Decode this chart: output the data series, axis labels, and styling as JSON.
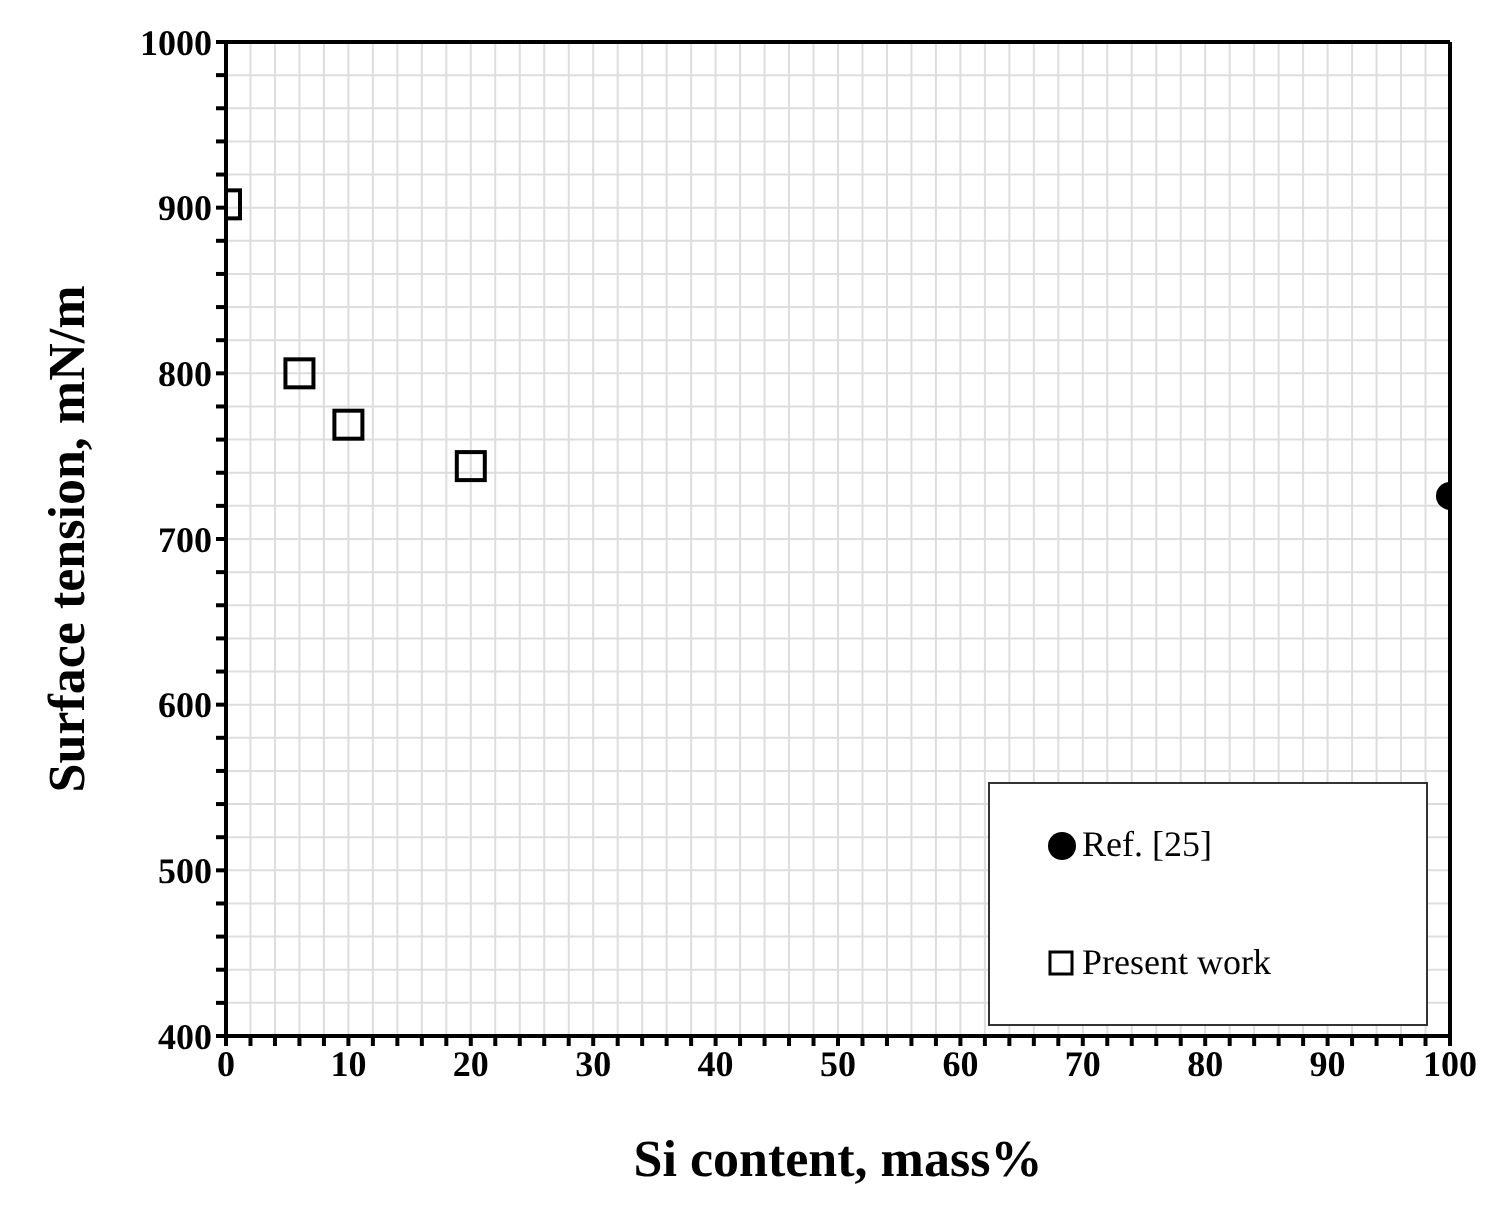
{
  "chart_data": {
    "type": "scatter",
    "xlabel": "Si content, mass%",
    "ylabel": "Surface tension, mN/m",
    "series": [
      {
        "name": "Ref. [25]",
        "color": "#000000",
        "marker": "circle",
        "x": [
          100
        ],
        "values": [
          726
        ]
      },
      {
        "name": "Present work",
        "color": "#000000",
        "marker": "square",
        "x": [
          0,
          6,
          10,
          20
        ],
        "values": [
          902,
          800,
          769,
          744
        ]
      }
    ],
    "xlim": [
      0,
      100
    ],
    "xticks": [
      0,
      {
        "value": 2,
        "label": null
      },
      {
        "value": 4,
        "label": null
      },
      {
        "value": 6,
        "label": null
      },
      {
        "value": 8,
        "label": null
      },
      10,
      {
        "value": 12,
        "label": null
      },
      {
        "value": 14,
        "label": null
      },
      {
        "value": 16,
        "label": null
      },
      {
        "value": 18,
        "label": null
      },
      20,
      {
        "value": 22,
        "label": null
      },
      {
        "value": 24,
        "label": null
      },
      {
        "value": 26,
        "label": null
      },
      {
        "value": 28,
        "label": null
      },
      30,
      {
        "value": 32,
        "label": null
      },
      {
        "value": 34,
        "label": null
      },
      {
        "value": 36,
        "label": null
      },
      {
        "value": 38,
        "label": null
      },
      40,
      {
        "value": 42,
        "label": null
      },
      {
        "value": 44,
        "label": null
      },
      {
        "value": 46,
        "label": null
      },
      {
        "value": 48,
        "label": null
      },
      50,
      {
        "value": 52,
        "label": null
      },
      {
        "value": 54,
        "label": null
      },
      {
        "value": 56,
        "label": null
      },
      {
        "value": 58,
        "label": null
      },
      60,
      {
        "value": 62,
        "label": null
      },
      {
        "value": 64,
        "label": null
      },
      {
        "value": 66,
        "label": null
      },
      {
        "value": 68,
        "label": null
      },
      70,
      {
        "value": 72,
        "label": null
      },
      {
        "value": 74,
        "label": null
      },
      {
        "value": 76,
        "label": null
      },
      {
        "value": 78,
        "label": null
      },
      80,
      {
        "value": 82,
        "label": null
      },
      {
        "value": 84,
        "label": null
      },
      {
        "value": 86,
        "label": null
      },
      {
        "value": 88,
        "label": null
      },
      90,
      {
        "value": 92,
        "label": null
      },
      {
        "value": 94,
        "label": null
      },
      {
        "value": 96,
        "label": null
      },
      {
        "value": 98,
        "label": null
      },
      100
    ],
    "ylim": [
      400,
      1000
    ],
    "yticks": [
      400,
      {
        "value": 420,
        "label": null
      },
      {
        "value": 440,
        "label": null
      },
      {
        "value": 460,
        "label": null
      },
      {
        "value": 480,
        "label": null
      },
      500,
      {
        "value": 520,
        "label": null
      },
      {
        "value": 540,
        "label": null
      },
      {
        "value": 560,
        "label": null
      },
      {
        "value": 580,
        "label": null
      },
      600,
      {
        "value": 620,
        "label": null
      },
      {
        "value": 640,
        "label": null
      },
      {
        "value": 660,
        "label": null
      },
      {
        "value": 680,
        "label": null
      },
      700,
      {
        "value": 720,
        "label": null
      },
      {
        "value": 740,
        "label": null
      },
      {
        "value": 760,
        "label": null
      },
      {
        "value": 780,
        "label": null
      },
      800,
      {
        "value": 820,
        "label": null
      },
      {
        "value": 840,
        "label": null
      },
      {
        "value": 860,
        "label": null
      },
      {
        "value": 880,
        "label": null
      },
      900,
      {
        "value": 920,
        "label": null
      },
      {
        "value": 940,
        "label": null
      },
      {
        "value": 960,
        "label": null
      },
      {
        "value": 980,
        "label": null
      },
      1000
    ],
    "grid": true,
    "legend": "bottom right"
  }
}
